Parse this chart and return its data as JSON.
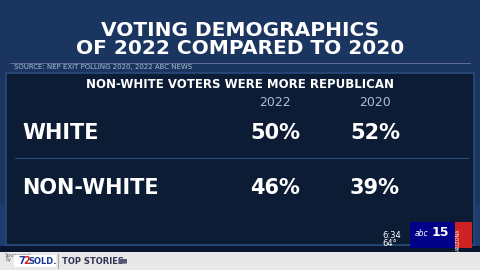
{
  "title_line1": "VOTING DEMOGRAPHICS",
  "title_line2": "OF 2022 COMPARED TO 2020",
  "source": "SOURCE: NEP EXIT POLLING 2020, 2022 ABC NEWS",
  "subtitle": "NON-WHITE VOTERS WERE MORE REPUBLICAN",
  "col1_header": "2022",
  "col2_header": "2020",
  "row1_label": "WHITE",
  "row2_label": "NON-WHITE",
  "row1_col1": "50%",
  "row1_col2": "52%",
  "row2_col1": "46%",
  "row2_col2": "39%",
  "bg_outer_top": "#1e3d6e",
  "bg_outer_bottom": "#102050",
  "bg_inner": "#0c1c35",
  "title_color": "#ffffff",
  "source_color": "#aabbcc",
  "subtitle_color": "#ffffff",
  "header_color": "#aabbdd",
  "label_color": "#ffffff",
  "value_color": "#ffffff",
  "inner_box_edge": "#2a4a7a",
  "bottom_bar_color": "#0a1530",
  "ticker_bg": "#f0f0f0",
  "ticker_text": "#222266"
}
